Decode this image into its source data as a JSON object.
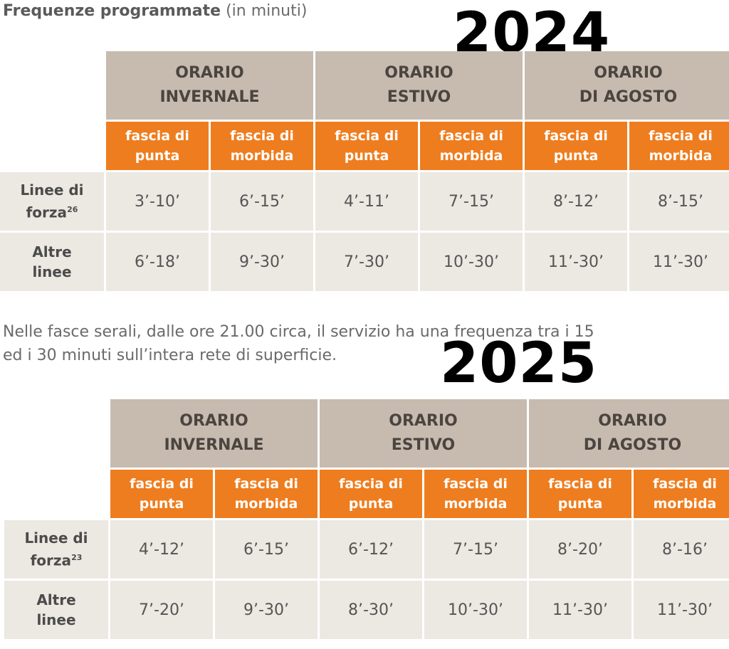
{
  "title": {
    "bold": "Frequenze programmate",
    "light": "(in minuti)"
  },
  "years": {
    "top": "2024",
    "bottom": "2025"
  },
  "note": {
    "line1": "Nelle fasce serali, dalle ore 21.00 circa, il servizio ha una frequenza tra i 15",
    "line2": "ed i 30 minuti sull’intera rete di superficie."
  },
  "table_2024": {
    "seasons": [
      {
        "line1": "ORARIO",
        "line2": "INVERNALE"
      },
      {
        "line1": "ORARIO",
        "line2": "ESTIVO"
      },
      {
        "line1": "ORARIO",
        "line2": "DI AGOSTO"
      }
    ],
    "bands": [
      {
        "line1": "fascia di",
        "line2": "punta"
      },
      {
        "line1": "fascia di",
        "line2": "morbida"
      },
      {
        "line1": "fascia di",
        "line2": "punta"
      },
      {
        "line1": "fascia di",
        "line2": "morbida"
      },
      {
        "line1": "fascia di",
        "line2": "punta"
      },
      {
        "line1": "fascia di",
        "line2": "morbida"
      }
    ],
    "rows": [
      {
        "label1": "Linee di",
        "label2": "forza",
        "sup": "26",
        "values": [
          "3’-10’",
          "6’-15’",
          "4’-11’",
          "7’-15’",
          "8’-12’",
          "8’-15’"
        ]
      },
      {
        "label1": "Altre",
        "label2": "linee",
        "sup": "",
        "values": [
          "6’-18’",
          "9’-30’",
          "7’-30’",
          "10’-30’",
          "11’-30’",
          "11’-30’"
        ]
      }
    ]
  },
  "table_2025": {
    "seasons": [
      {
        "line1": "ORARIO",
        "line2": "INVERNALE"
      },
      {
        "line1": "ORARIO",
        "line2": "ESTIVO"
      },
      {
        "line1": "ORARIO",
        "line2": "DI AGOSTO"
      }
    ],
    "bands": [
      {
        "line1": "fascia di",
        "line2": "punta"
      },
      {
        "line1": "fascia di",
        "line2": "morbida"
      },
      {
        "line1": "fascia di",
        "line2": "punta"
      },
      {
        "line1": "fascia di",
        "line2": "morbida"
      },
      {
        "line1": "fascia di",
        "line2": "punta"
      },
      {
        "line1": "fascia di",
        "line2": "morbida"
      }
    ],
    "rows": [
      {
        "label1": "Linee di",
        "label2": "forza",
        "sup": "23",
        "values": [
          "4’-12’",
          "6’-15’",
          "6’-12’",
          "7’-15’",
          "8’-20’",
          "8’-16’"
        ]
      },
      {
        "label1": "Altre",
        "label2": "linee",
        "sup": "",
        "values": [
          "7’-20’",
          "9’-30’",
          "8’-30’",
          "10’-30’",
          "11’-30’",
          "11’-30’"
        ]
      }
    ]
  }
}
